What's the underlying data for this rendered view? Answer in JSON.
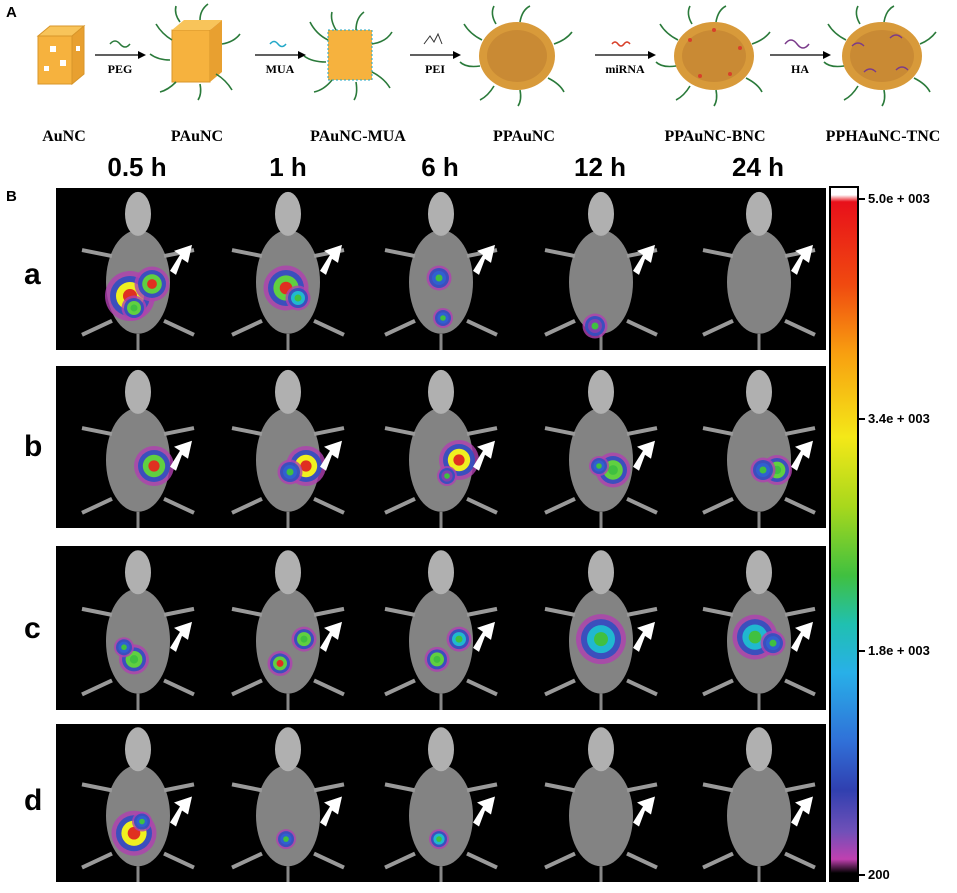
{
  "panels": {
    "a": "A",
    "b": "B"
  },
  "scheme": {
    "nodes": [
      "AuNC",
      "PAuNC",
      "PAuNC-MUA",
      "PPAuNC",
      "PPAuNC-BNC",
      "PPHAuNC-TNC"
    ],
    "reagents": [
      "PEG",
      "MUA",
      "PEI",
      "miRNA",
      "HA"
    ]
  },
  "timepoints": [
    "0.5 h",
    "1 h",
    "6 h",
    "12 h",
    "24 h"
  ],
  "rows": [
    "a",
    "b",
    "c",
    "d"
  ],
  "colorbar": {
    "max_label": "5.0e + 003",
    "ticks": [
      "3.4e + 003",
      "1.8e + 003"
    ],
    "min_label": "200"
  }
}
